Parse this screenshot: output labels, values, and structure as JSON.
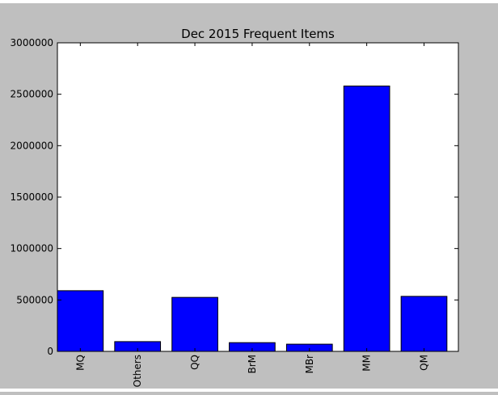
{
  "chart_data": {
    "type": "bar",
    "title": "Dec 2015 Frequent Items",
    "xlabel": "",
    "ylabel": "",
    "categories": [
      "MQ",
      "Others",
      "QQ",
      "BrM",
      "MBr",
      "MM",
      "QM"
    ],
    "values": [
      590000,
      95000,
      525000,
      85000,
      70000,
      2580000,
      535000
    ],
    "ylim": [
      0,
      3000000
    ],
    "yticks": [
      "0",
      "500000",
      "1000000",
      "1500000",
      "2000000",
      "2500000",
      "3000000"
    ],
    "ytick_values": [
      0,
      500000,
      1000000,
      1500000,
      2000000,
      2500000,
      3000000
    ],
    "grid": false,
    "legend": "none",
    "bar_color": "#0000ff",
    "figure_background": "#bfbfbf",
    "axes_background": "#ffffff"
  }
}
